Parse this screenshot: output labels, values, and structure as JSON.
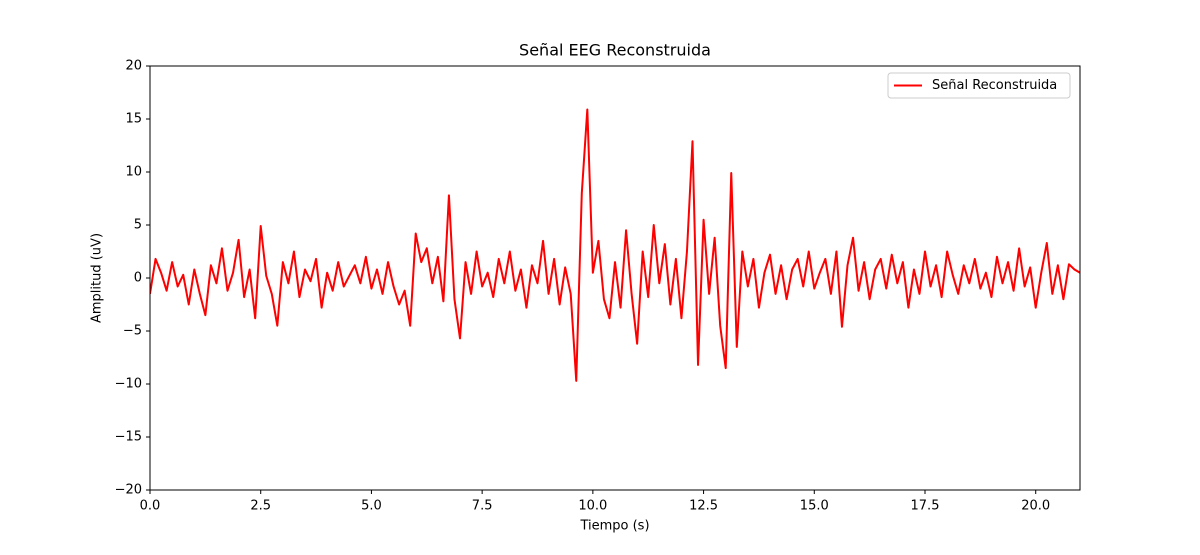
{
  "chart_data": {
    "type": "line",
    "title": "Señal EEG Reconstruida",
    "xlabel": "Tiempo (s)",
    "ylabel": "Amplitud (uV)",
    "x": [
      0,
      0.125,
      0.25,
      0.375,
      0.5,
      0.625,
      0.75,
      0.875,
      1,
      1.125,
      1.25,
      1.375,
      1.5,
      1.625,
      1.75,
      1.875,
      2,
      2.125,
      2.25,
      2.375,
      2.5,
      2.625,
      2.75,
      2.875,
      3,
      3.125,
      3.25,
      3.375,
      3.5,
      3.625,
      3.75,
      3.875,
      4,
      4.125,
      4.25,
      4.375,
      4.5,
      4.625,
      4.75,
      4.875,
      5,
      5.125,
      5.25,
      5.375,
      5.5,
      5.625,
      5.75,
      5.875,
      6,
      6.125,
      6.25,
      6.375,
      6.5,
      6.625,
      6.75,
      6.875,
      7,
      7.125,
      7.25,
      7.375,
      7.5,
      7.625,
      7.75,
      7.875,
      8,
      8.125,
      8.25,
      8.375,
      8.5,
      8.625,
      8.75,
      8.875,
      9,
      9.125,
      9.25,
      9.375,
      9.5,
      9.625,
      9.75,
      9.875,
      10,
      10.125,
      10.25,
      10.375,
      10.5,
      10.625,
      10.75,
      10.875,
      11,
      11.125,
      11.25,
      11.375,
      11.5,
      11.625,
      11.75,
      11.875,
      12,
      12.125,
      12.25,
      12.375,
      12.5,
      12.625,
      12.75,
      12.875,
      13,
      13.125,
      13.25,
      13.375,
      13.5,
      13.625,
      13.75,
      13.875,
      14,
      14.125,
      14.25,
      14.375,
      14.5,
      14.625,
      14.75,
      14.875,
      15,
      15.125,
      15.25,
      15.375,
      15.5,
      15.625,
      15.75,
      15.875,
      16,
      16.125,
      16.25,
      16.375,
      16.5,
      16.625,
      16.75,
      16.875,
      17,
      17.125,
      17.25,
      17.375,
      17.5,
      17.625,
      17.75,
      17.875,
      18,
      18.125,
      18.25,
      18.375,
      18.5,
      18.625,
      18.75,
      18.875,
      19,
      19.125,
      19.25,
      19.375,
      19.5,
      19.625,
      19.75,
      19.875,
      20,
      20.125,
      20.25,
      20.375,
      20.5,
      20.625,
      20.75,
      20.875,
      21
    ],
    "series": [
      {
        "name": "Señal Reconstruida",
        "color": "#ff0000",
        "values": [
          -1.5,
          1.8,
          0.5,
          -1.2,
          1.5,
          -0.8,
          0.3,
          -2.5,
          0.8,
          -1.5,
          -3.5,
          1.2,
          -0.5,
          2.8,
          -1.2,
          0.5,
          3.6,
          -1.8,
          0.8,
          -3.8,
          4.9,
          0.2,
          -1.5,
          -4.5,
          1.5,
          -0.5,
          2.5,
          -1.8,
          0.8,
          -0.3,
          1.8,
          -2.8,
          0.5,
          -1.2,
          1.5,
          -0.8,
          0.2,
          1.2,
          -0.5,
          2.0,
          -1.0,
          0.8,
          -1.5,
          1.5,
          -0.8,
          -2.5,
          -1.2,
          -4.5,
          4.2,
          1.5,
          2.8,
          -0.5,
          2.0,
          -2.2,
          7.8,
          -2.0,
          -5.7,
          1.5,
          -1.5,
          2.5,
          -0.8,
          0.5,
          -1.8,
          1.8,
          -0.5,
          2.5,
          -1.2,
          0.8,
          -2.8,
          1.2,
          -0.5,
          3.5,
          -1.5,
          1.8,
          -2.5,
          1.0,
          -1.5,
          -9.7,
          8.0,
          15.9,
          0.5,
          3.5,
          -2.0,
          -3.8,
          1.5,
          -2.8,
          4.5,
          -1.5,
          -6.2,
          2.5,
          -1.8,
          5.0,
          -0.5,
          3.2,
          -2.5,
          1.8,
          -3.8,
          2.5,
          12.9,
          -8.2,
          5.5,
          -1.5,
          3.8,
          -4.5,
          -8.5,
          9.9,
          -6.5,
          2.5,
          -0.8,
          1.8,
          -2.8,
          0.5,
          2.2,
          -1.5,
          1.2,
          -2.0,
          0.8,
          1.8,
          -0.8,
          2.5,
          -1.0,
          0.5,
          1.8,
          -1.5,
          2.5,
          -4.6,
          1.2,
          3.8,
          -1.2,
          1.5,
          -2.0,
          0.8,
          1.8,
          -1.0,
          2.2,
          -0.5,
          1.5,
          -2.8,
          0.8,
          -1.5,
          2.5,
          -0.8,
          1.2,
          -1.8,
          2.5,
          0.3,
          -1.5,
          1.2,
          -0.5,
          1.8,
          -1.0,
          0.5,
          -1.8,
          2.0,
          -0.5,
          1.5,
          -1.2,
          2.8,
          -0.8,
          1.0,
          -2.8,
          0.5,
          3.3,
          -1.5,
          1.2,
          -2.0,
          1.3,
          0.8,
          0.5
        ]
      }
    ],
    "xlim": [
      0,
      21
    ],
    "ylim": [
      -20,
      20
    ],
    "xticks": [
      {
        "value": 0,
        "label": "0.0"
      },
      2.5,
      {
        "value": 5,
        "label": "5.0"
      },
      7.5,
      {
        "value": 10,
        "label": "10.0"
      },
      12.5,
      {
        "value": 15,
        "label": "15.0"
      },
      17.5,
      {
        "value": 20,
        "label": "20.0"
      }
    ],
    "yticks": [
      {
        "value": -20,
        "label": "−20"
      },
      {
        "value": -15,
        "label": "−15"
      },
      {
        "value": -10,
        "label": "−10"
      },
      {
        "value": -5,
        "label": "−5"
      },
      0,
      5,
      10,
      15,
      20
    ],
    "legend": "upper right",
    "grid": false
  }
}
